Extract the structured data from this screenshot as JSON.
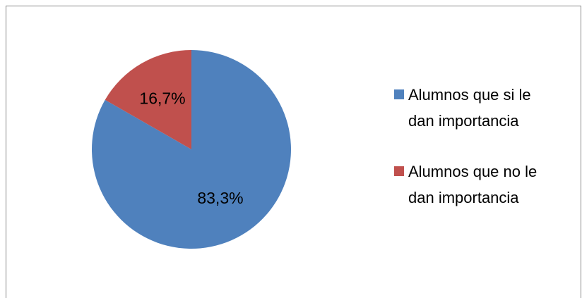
{
  "chart_data": {
    "type": "pie",
    "categories": [
      "Alumnos que si le dan importancia",
      "Alumnos que no le dan importancia"
    ],
    "values": [
      83.3,
      16.7
    ],
    "value_labels": [
      "83,3%",
      "16,7%"
    ],
    "colors": [
      "#4f81bd",
      "#c0504d"
    ],
    "legend": "right"
  }
}
